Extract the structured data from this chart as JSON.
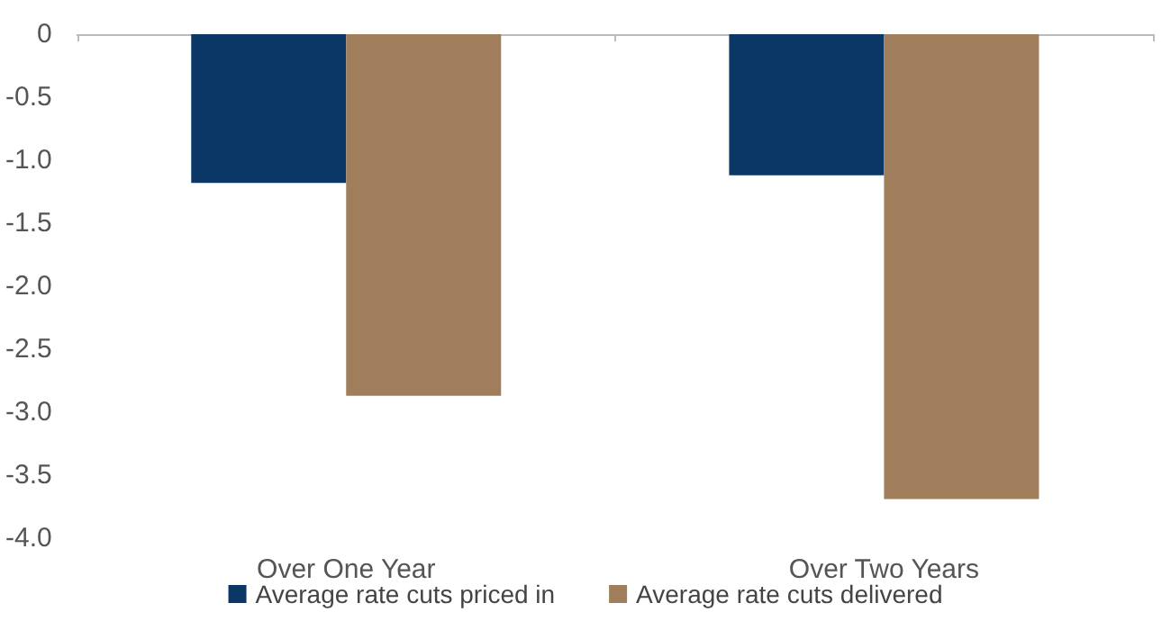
{
  "chart_data": {
    "type": "bar",
    "categories": [
      "Over One Year",
      "Over Two Years"
    ],
    "series": [
      {
        "name": "Average rate cuts priced in",
        "color": "#0b3766",
        "values": [
          -1.18,
          -1.12
        ]
      },
      {
        "name": "Average rate cuts delivered",
        "color": "#a07e5c",
        "values": [
          -2.87,
          -3.69
        ]
      }
    ],
    "ylim": [
      -4,
      0
    ],
    "yticks": [
      {
        "value": -4,
        "label": "-4.0"
      },
      {
        "value": -3.5,
        "label": "-3.5"
      },
      {
        "value": -3,
        "label": "-3.0"
      },
      {
        "value": -2.5,
        "label": "-2.5"
      },
      {
        "value": -2,
        "label": "-2.0"
      },
      {
        "value": -1.5,
        "label": "-1.5"
      },
      {
        "value": -1,
        "label": "-1.0"
      },
      {
        "value": -0.5,
        "label": "-0.5"
      },
      0
    ],
    "grid": false,
    "legend": "bottom"
  }
}
